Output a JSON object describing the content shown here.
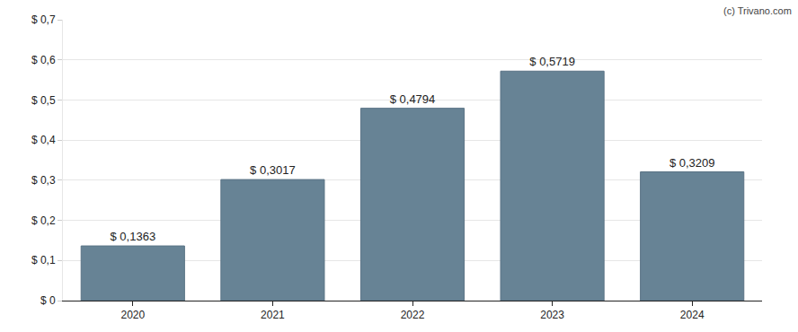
{
  "chart_data": {
    "type": "bar",
    "categories": [
      "2020",
      "2021",
      "2022",
      "2023",
      "2024"
    ],
    "values": [
      0.1363,
      0.3017,
      0.4794,
      0.5719,
      0.3209
    ],
    "value_labels": [
      "$ 0,1363",
      "$ 0,3017",
      "$ 0,4794",
      "$ 0,5719",
      "$ 0,3209"
    ],
    "data_labels": true,
    "color": "#678395",
    "ylim": [
      0,
      0.7
    ],
    "yticks": [
      {
        "value": 0,
        "label": "$ 0"
      },
      {
        "value": 0.1,
        "label": "$ 0,1"
      },
      {
        "value": 0.2,
        "label": "$ 0,2"
      },
      {
        "value": 0.3,
        "label": "$ 0,3"
      },
      {
        "value": 0.4,
        "label": "$ 0,4"
      },
      {
        "value": 0.5,
        "label": "$ 0,5"
      },
      {
        "value": 0.6,
        "label": "$ 0,6"
      },
      {
        "value": 0.7,
        "label": "$ 0,7"
      }
    ],
    "grid": true,
    "annotations": [
      "(c) Trivano.com"
    ]
  }
}
